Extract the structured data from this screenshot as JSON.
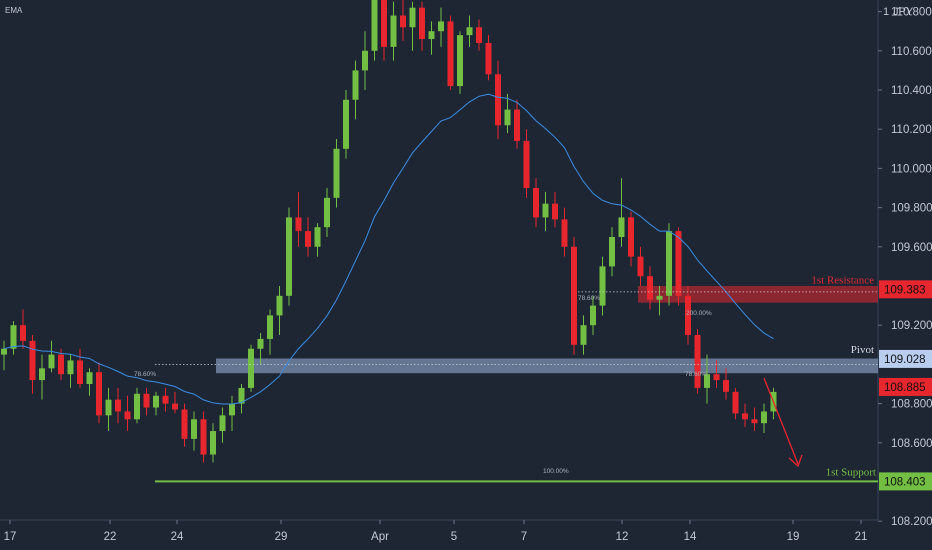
{
  "indicator_label": "EMA",
  "symbol": "JPY",
  "symbol_prefix": "1",
  "chart_data": {
    "type": "candlestick",
    "x_tick_labels": [
      "17",
      "22",
      "24",
      "29",
      "Apr",
      "5",
      "7",
      "12",
      "14",
      "19",
      "21"
    ],
    "y_ticks": [
      110.8,
      110.6,
      110.4,
      110.2,
      110.0,
      109.8,
      109.6,
      109.2,
      108.8,
      108.6,
      108.2
    ],
    "y_tick_labels": [
      "110.800",
      "110.600",
      "110.400",
      "110.200",
      "110.000",
      "109.800",
      "109.600",
      "109.200",
      "108.800",
      "108.600",
      "108.200"
    ],
    "ylim": [
      108.1,
      111.05
    ],
    "colors": {
      "up": "#72bf44",
      "down": "#e8262e",
      "ema": "#3a8ee6",
      "background": "#1e2634",
      "grid": "#2a3344"
    },
    "levels": [
      {
        "name": "1st Resistance",
        "value": 109.383,
        "label": "109.383",
        "color": "#e8262e"
      },
      {
        "name": "Pivot",
        "value": 109.028,
        "label": "109.028",
        "color": "#a9c4ea"
      },
      {
        "name": "1st Support",
        "value": 108.403,
        "label": "108.403",
        "color": "#72bf44"
      }
    ],
    "current_price": {
      "value": 108.885,
      "label": "108.885",
      "color": "#e8262e"
    },
    "fib_labels": [
      "78.60%",
      "78.60%",
      "200.00%",
      "78.60%",
      "100.00%"
    ],
    "ohlc": [
      [
        109.05,
        109.12,
        108.97,
        109.08
      ],
      [
        109.08,
        109.22,
        109.05,
        109.2
      ],
      [
        109.2,
        109.28,
        109.08,
        109.12
      ],
      [
        109.12,
        109.15,
        108.85,
        108.92
      ],
      [
        108.92,
        109.05,
        108.82,
        108.98
      ],
      [
        108.98,
        109.12,
        108.96,
        109.05
      ],
      [
        109.05,
        109.08,
        108.92,
        108.95
      ],
      [
        108.95,
        109.05,
        108.88,
        109.02
      ],
      [
        109.02,
        109.08,
        108.88,
        108.9
      ],
      [
        108.9,
        108.98,
        108.84,
        108.96
      ],
      [
        108.96,
        109.01,
        108.7,
        108.74
      ],
      [
        108.74,
        108.88,
        108.66,
        108.82
      ],
      [
        108.82,
        108.88,
        108.7,
        108.76
      ],
      [
        108.76,
        108.84,
        108.66,
        108.72
      ],
      [
        108.72,
        108.88,
        108.7,
        108.85
      ],
      [
        108.85,
        108.88,
        108.74,
        108.78
      ],
      [
        108.78,
        108.86,
        108.74,
        108.84
      ],
      [
        108.84,
        108.88,
        108.76,
        108.8
      ],
      [
        108.8,
        108.86,
        108.75,
        108.77
      ],
      [
        108.77,
        108.8,
        108.58,
        108.62
      ],
      [
        108.62,
        108.76,
        108.56,
        108.72
      ],
      [
        108.72,
        108.76,
        108.5,
        108.54
      ],
      [
        108.54,
        108.7,
        108.5,
        108.66
      ],
      [
        108.66,
        108.78,
        108.6,
        108.74
      ],
      [
        108.74,
        108.84,
        108.66,
        108.8
      ],
      [
        108.8,
        108.9,
        108.75,
        108.88
      ],
      [
        108.88,
        109.1,
        108.86,
        109.08
      ],
      [
        109.08,
        109.16,
        109.0,
        109.13
      ],
      [
        109.13,
        109.28,
        109.05,
        109.25
      ],
      [
        109.25,
        109.4,
        109.15,
        109.35
      ],
      [
        109.35,
        109.8,
        109.3,
        109.75
      ],
      [
        109.75,
        109.88,
        109.6,
        109.68
      ],
      [
        109.68,
        109.75,
        109.55,
        109.6
      ],
      [
        109.6,
        109.72,
        109.55,
        109.7
      ],
      [
        109.7,
        109.9,
        109.65,
        109.85
      ],
      [
        109.85,
        110.15,
        109.8,
        110.1
      ],
      [
        110.1,
        110.4,
        110.05,
        110.35
      ],
      [
        110.35,
        110.55,
        110.25,
        110.5
      ],
      [
        110.5,
        110.7,
        110.4,
        110.6
      ],
      [
        110.6,
        110.98,
        110.55,
        110.92
      ],
      [
        110.92,
        110.95,
        110.55,
        110.62
      ],
      [
        110.62,
        110.85,
        110.55,
        110.78
      ],
      [
        110.78,
        110.88,
        110.65,
        110.72
      ],
      [
        110.72,
        110.85,
        110.6,
        110.82
      ],
      [
        110.82,
        110.85,
        110.6,
        110.66
      ],
      [
        110.66,
        110.75,
        110.58,
        110.7
      ],
      [
        110.7,
        110.82,
        110.62,
        110.75
      ],
      [
        110.75,
        110.78,
        110.4,
        110.42
      ],
      [
        110.42,
        110.7,
        110.38,
        110.68
      ],
      [
        110.68,
        110.78,
        110.62,
        110.72
      ],
      [
        110.72,
        110.76,
        110.6,
        110.64
      ],
      [
        110.64,
        110.68,
        110.45,
        110.48
      ],
      [
        110.48,
        110.55,
        110.15,
        110.22
      ],
      [
        110.22,
        110.38,
        110.18,
        110.3
      ],
      [
        110.3,
        110.35,
        110.1,
        110.14
      ],
      [
        110.14,
        110.2,
        109.85,
        109.9
      ],
      [
        109.9,
        109.95,
        109.7,
        109.75
      ],
      [
        109.75,
        109.88,
        109.68,
        109.82
      ],
      [
        109.82,
        109.88,
        109.7,
        109.74
      ],
      [
        109.74,
        109.8,
        109.55,
        109.6
      ],
      [
        109.6,
        109.65,
        109.05,
        109.1
      ],
      [
        109.1,
        109.25,
        109.05,
        109.2
      ],
      [
        109.2,
        109.35,
        109.15,
        109.3
      ],
      [
        109.3,
        109.55,
        109.25,
        109.5
      ],
      [
        109.5,
        109.7,
        109.45,
        109.65
      ],
      [
        109.65,
        109.95,
        109.6,
        109.75
      ],
      [
        109.75,
        109.78,
        109.5,
        109.55
      ],
      [
        109.55,
        109.6,
        109.4,
        109.45
      ],
      [
        109.45,
        109.5,
        109.28,
        109.33
      ],
      [
        109.33,
        109.4,
        109.25,
        109.35
      ],
      [
        109.35,
        109.72,
        109.3,
        109.68
      ],
      [
        109.68,
        109.7,
        109.3,
        109.35
      ],
      [
        109.35,
        109.4,
        109.1,
        109.15
      ],
      [
        109.15,
        109.18,
        108.85,
        108.88
      ],
      [
        108.88,
        109.05,
        108.8,
        108.95
      ],
      [
        108.95,
        109.02,
        108.88,
        108.92
      ],
      [
        108.92,
        108.98,
        108.82,
        108.86
      ],
      [
        108.86,
        108.88,
        108.72,
        108.75
      ],
      [
        108.75,
        108.8,
        108.68,
        108.72
      ],
      [
        108.72,
        108.78,
        108.66,
        108.7
      ],
      [
        108.7,
        108.8,
        108.65,
        108.76
      ],
      [
        108.76,
        108.88,
        108.72,
        108.86
      ]
    ]
  }
}
